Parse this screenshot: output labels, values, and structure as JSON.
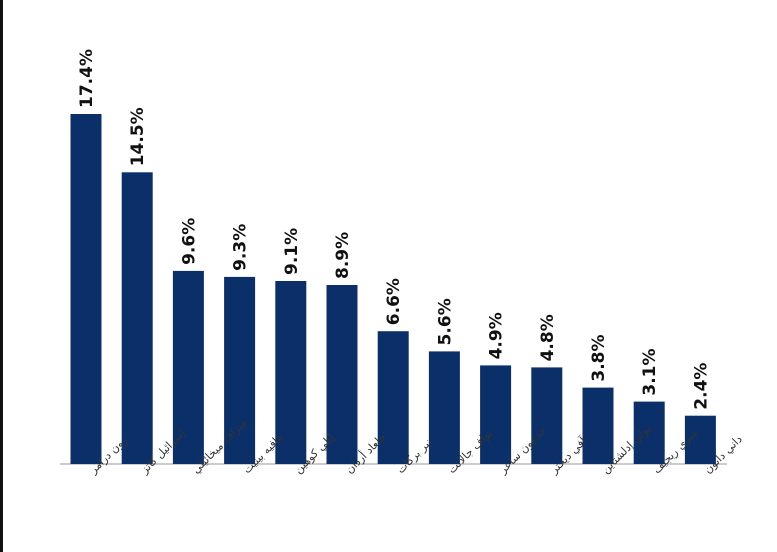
{
  "chart_data": {
    "type": "bar",
    "categories": [
      "رون درامر",
      "إسرائيل كاتز",
      "ميراف ميخائيلي",
      "مافيه بينيت",
      "إيلي كوهين",
      "جلعاد أردان",
      "نير بركات",
      "يواف جالانت",
      "جدعون ساعر",
      "آفي ديختر",
      "يولي إدلشتاين",
      "ميري ريجيف",
      "داني دانون"
    ],
    "values": [
      17.4,
      14.5,
      9.6,
      9.3,
      9.1,
      8.9,
      6.6,
      5.6,
      4.9,
      4.8,
      3.8,
      3.1,
      2.4
    ],
    "value_labels": [
      "17.4%",
      "14.5%",
      "9.6%",
      "9.3%",
      "9.1%",
      "8.9%",
      "6.6%",
      "5.6%",
      "4.9%",
      "4.8%",
      "3.8%",
      "3.1%",
      "2.4%"
    ],
    "ylim": [
      0,
      17.4
    ],
    "grid": false,
    "legend": "none",
    "bar_color": "#0b3069"
  }
}
